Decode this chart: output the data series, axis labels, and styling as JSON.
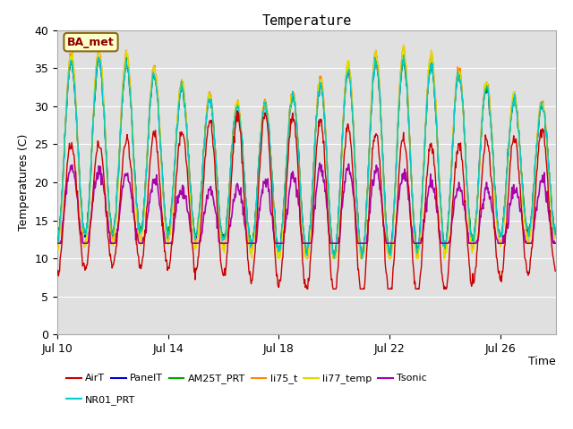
{
  "title": "Temperature",
  "xlabel": "Time",
  "ylabel": "Temperatures (C)",
  "ylim": [
    0,
    40
  ],
  "yticks": [
    0,
    5,
    10,
    15,
    20,
    25,
    30,
    35,
    40
  ],
  "x_tick_positions": [
    0,
    4,
    8,
    12,
    16
  ],
  "x_tick_labels": [
    "Jul 10",
    "Jul 14",
    "Jul 18",
    "Jul 22",
    "Jul 26"
  ],
  "annotation_text": "BA_met",
  "background_color": "#e0e0e0",
  "figure_background": "#ffffff",
  "series": {
    "AirT": {
      "color": "#cc0000",
      "lw": 1.0
    },
    "PanelT": {
      "color": "#0000cc",
      "lw": 1.0
    },
    "AM25T_PRT": {
      "color": "#00aa00",
      "lw": 1.0
    },
    "li75_t": {
      "color": "#ff8800",
      "lw": 1.0
    },
    "li77_temp": {
      "color": "#dddd00",
      "lw": 1.0
    },
    "Tsonic": {
      "color": "#aa00aa",
      "lw": 1.2
    },
    "NR01_PRT": {
      "color": "#00cccc",
      "lw": 1.0
    }
  },
  "legend_row1": [
    "AirT",
    "PanelT",
    "AM25T_PRT",
    "li75_t",
    "li77_temp",
    "Tsonic"
  ],
  "legend_row2": [
    "NR01_PRT"
  ]
}
